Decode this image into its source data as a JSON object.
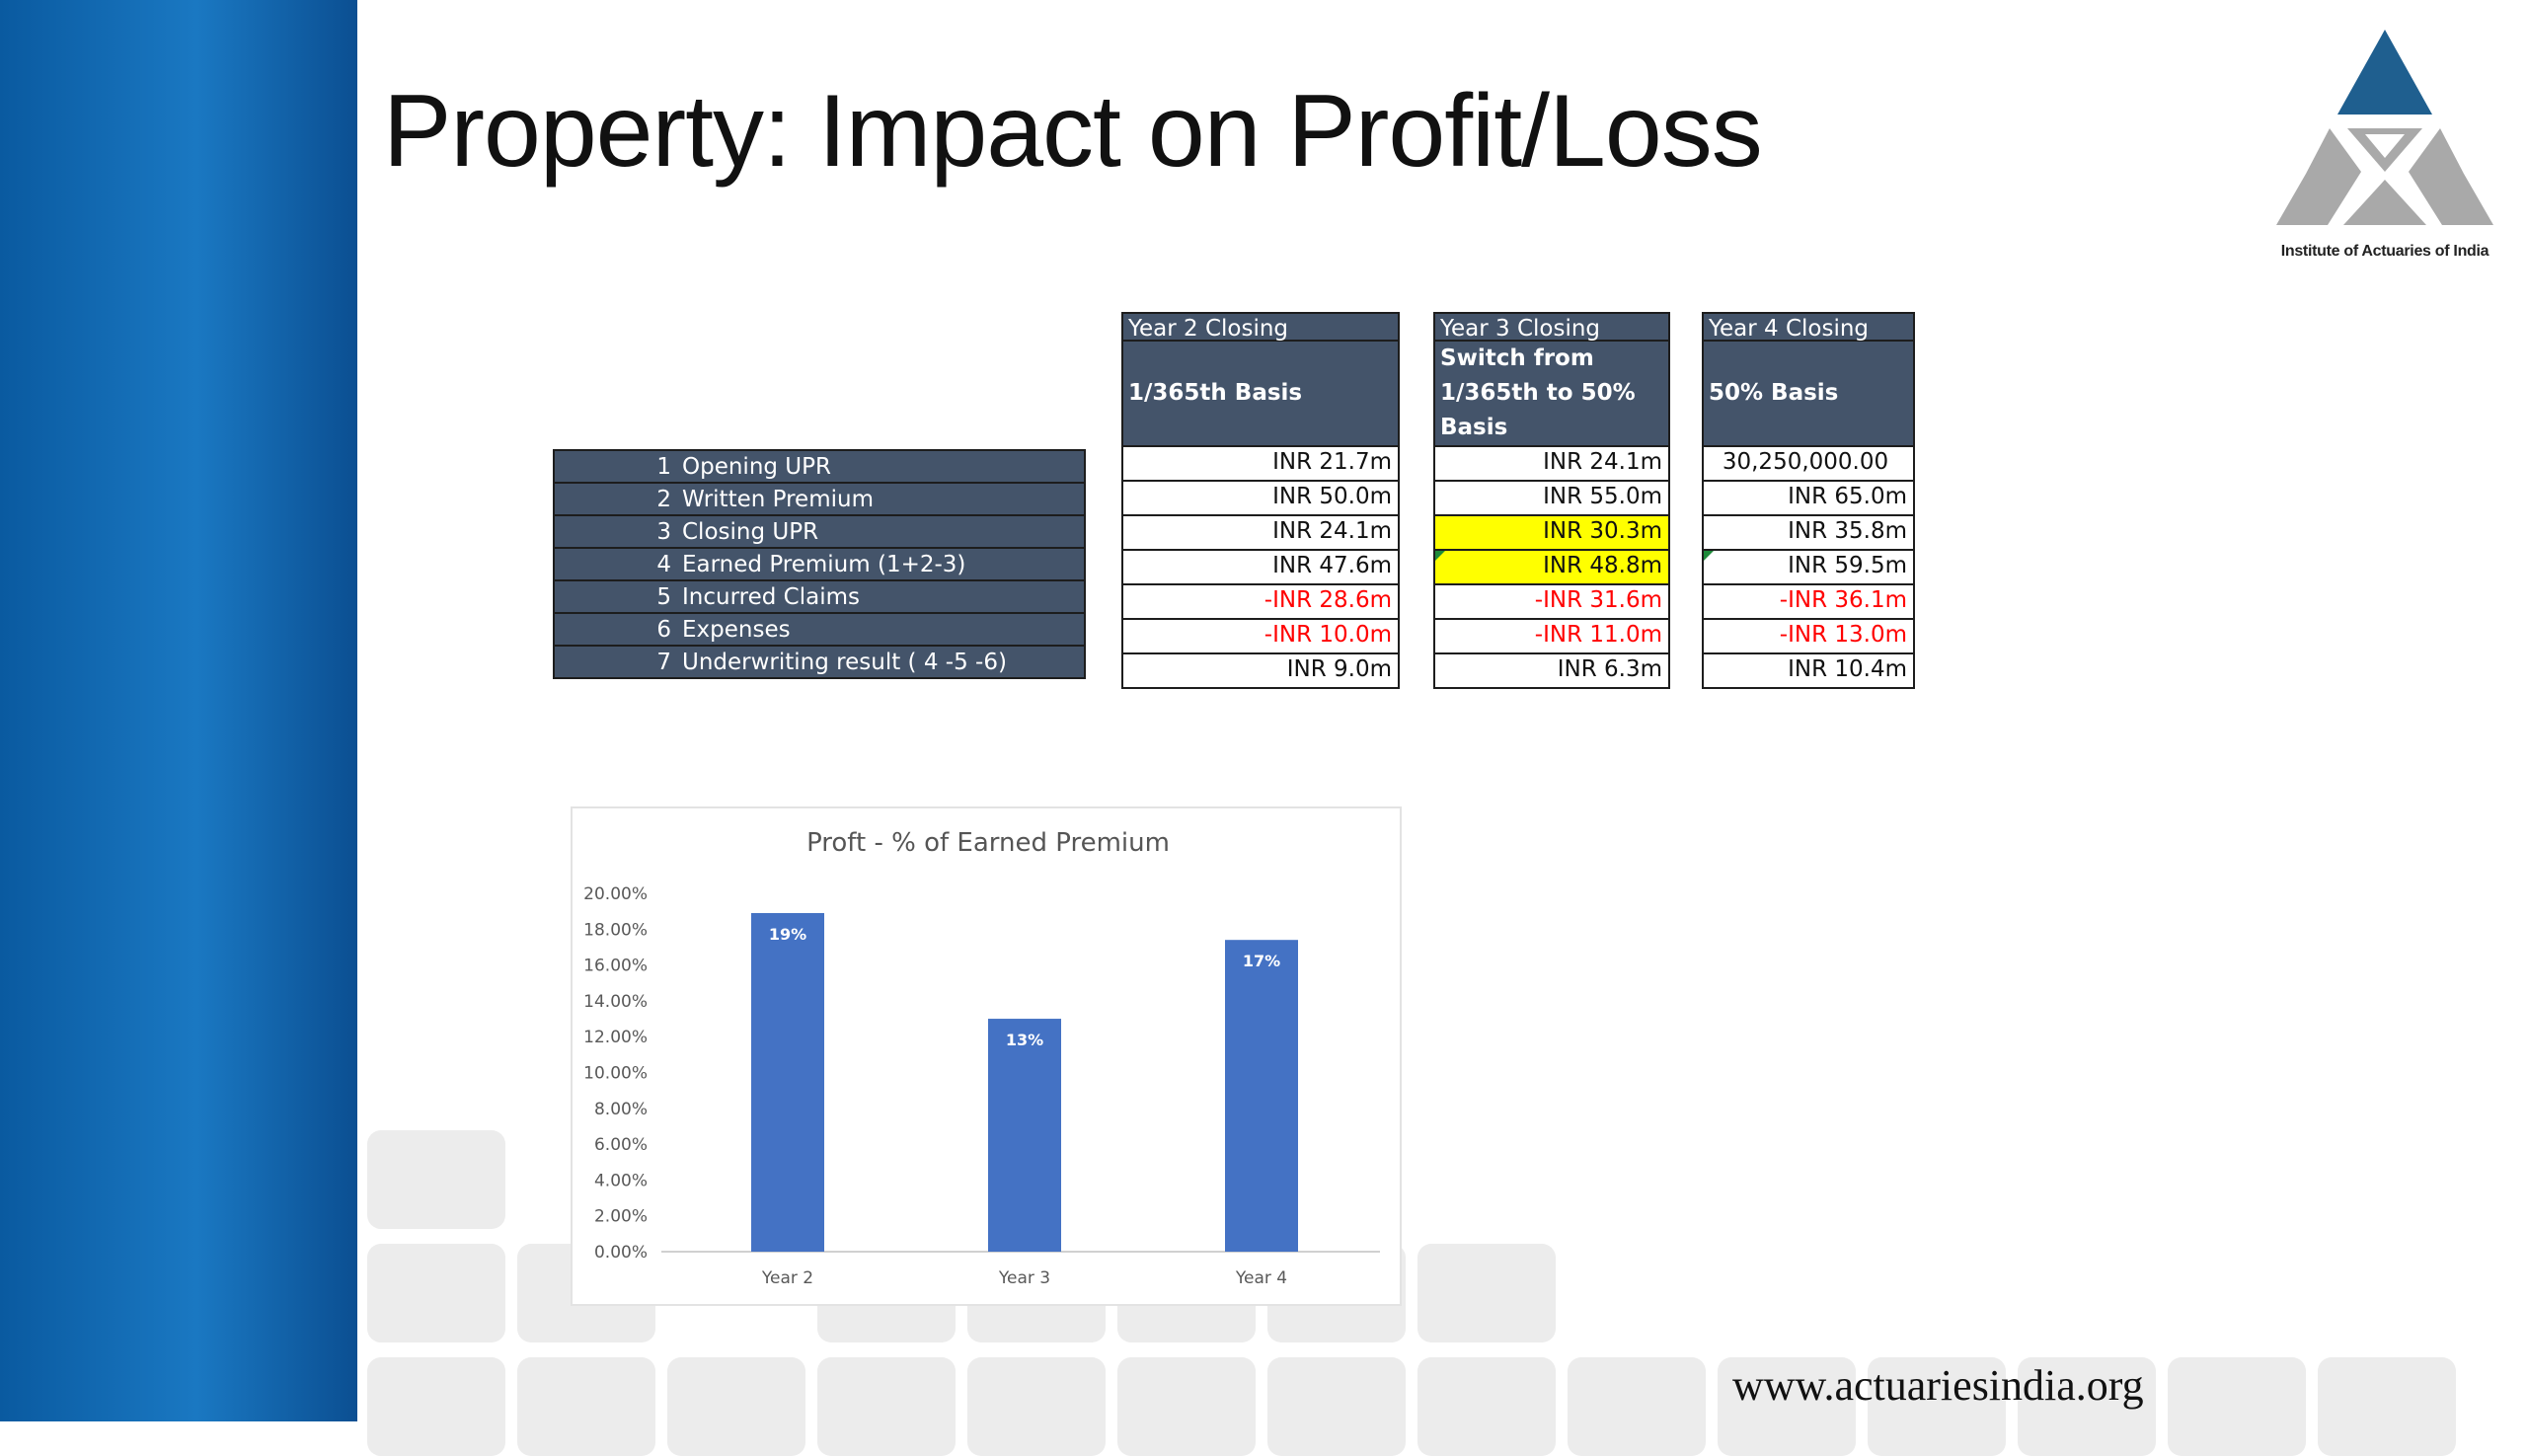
{
  "slide": {
    "title": "Property: Impact on Profit/Loss",
    "footer_url": "www.actuariesindia.org",
    "logo_caption": "Institute of Actuaries of India",
    "logo_icon": "iai-triangle-logo-icon",
    "colors": {
      "side_band": "#1a78c2",
      "header_fill": "#44546a",
      "highlight": "#ffff00",
      "negative": "#ff0000",
      "bar": "#4472c4"
    }
  },
  "table": {
    "rows": [
      {
        "num": "1",
        "label": "Opening UPR"
      },
      {
        "num": "2",
        "label": "Written Premium"
      },
      {
        "num": "3",
        "label": "Closing UPR"
      },
      {
        "num": "4",
        "label": "Earned Premium (1+2-3)"
      },
      {
        "num": "5",
        "label": "Incurred Claims"
      },
      {
        "num": "6",
        "label": "Expenses"
      },
      {
        "num": "7",
        "label": "Underwriting result ( 4 -5 -6)"
      }
    ],
    "columns": [
      {
        "header": "Year 2 Closing",
        "basis": "1/365th Basis",
        "values": [
          "INR 21.7m",
          "INR 50.0m",
          "INR 24.1m",
          "INR 47.6m",
          "-INR 28.6m",
          "-INR 10.0m",
          "INR 9.0m"
        ]
      },
      {
        "header": "Year 3 Closing",
        "basis": "Switch from\n1/365th to 50%\nBasis",
        "values": [
          "INR 24.1m",
          "INR 55.0m",
          "INR 30.3m",
          "INR 48.8m",
          "-INR 31.6m",
          "-INR 11.0m",
          "INR 6.3m"
        ]
      },
      {
        "header": "Year 4 Closing",
        "basis": "50% Basis",
        "values": [
          "30,250,000.00",
          "INR 65.0m",
          "INR 35.8m",
          "INR 59.5m",
          "-INR 36.1m",
          "-INR 13.0m",
          "INR 10.4m"
        ]
      }
    ]
  },
  "chart_data": {
    "type": "bar",
    "title": "Proft - % of Earned Premium",
    "categories": [
      "Year 2",
      "Year 3",
      "Year 4"
    ],
    "values": [
      18.9,
      13.0,
      17.4
    ],
    "data_labels": [
      "19%",
      "13%",
      "17%"
    ],
    "ylim": [
      0,
      20
    ],
    "yticks": [
      "0.00%",
      "2.00%",
      "4.00%",
      "6.00%",
      "8.00%",
      "10.00%",
      "12.00%",
      "14.00%",
      "16.00%",
      "18.00%",
      "20.00%"
    ],
    "grid": false,
    "legend": "none"
  }
}
